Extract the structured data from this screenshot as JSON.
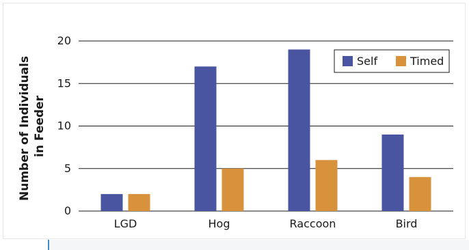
{
  "chart_data": {
    "type": "bar",
    "categories": [
      "LGD",
      "Hog",
      "Raccoon",
      "Bird"
    ],
    "series": [
      {
        "name": "Self",
        "values": [
          2,
          17,
          19,
          9
        ],
        "color": "#4a55a2"
      },
      {
        "name": "Timed",
        "values": [
          2,
          5,
          6,
          4
        ],
        "color": "#d9923c"
      }
    ],
    "title": "",
    "xlabel": "",
    "ylabel_lines": [
      "Number of Individuals",
      "in Feeder"
    ],
    "ylim": [
      0,
      20
    ],
    "yticks": [
      0,
      5,
      10,
      15,
      20
    ],
    "grid": true,
    "legend_position": "top-right"
  }
}
